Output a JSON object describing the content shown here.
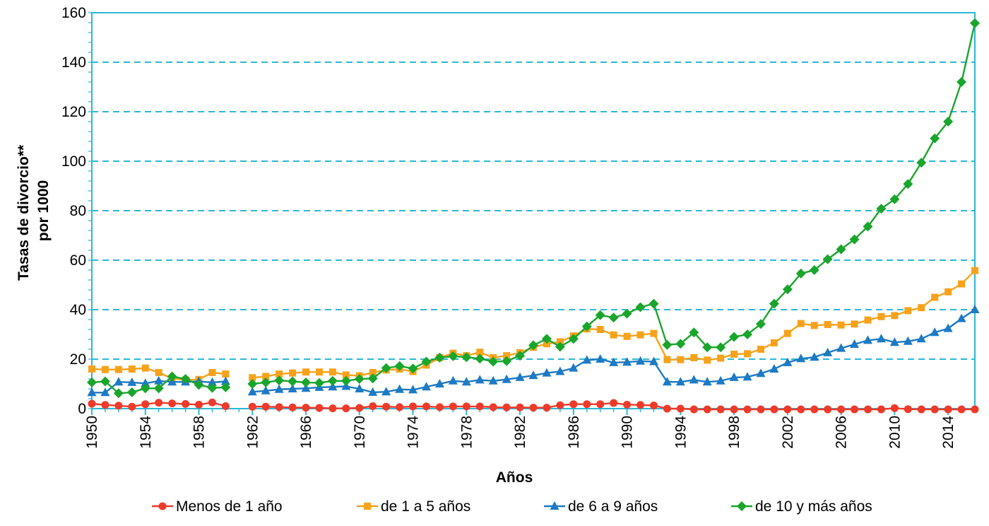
{
  "chart_data": {
    "type": "line",
    "title": "",
    "xlabel": "Años",
    "ylabel": "Tasas de divorcio** por 1000",
    "ylabel_lines": [
      "Tasas de divorcio**",
      "por 1000"
    ],
    "xlim": [
      1950,
      2016
    ],
    "ylim": [
      0,
      160
    ],
    "y_ticks": [
      0,
      20,
      40,
      60,
      80,
      100,
      120,
      140,
      160
    ],
    "x_ticks": [
      1950,
      1954,
      1958,
      1962,
      1966,
      1970,
      1974,
      1978,
      1982,
      1986,
      1990,
      1994,
      1998,
      2002,
      2006,
      2010,
      2014
    ],
    "grid": "horizontal dashed",
    "legend_position": "bottom",
    "series": [
      {
        "name": "Menos de 1 año",
        "color": "#ee3a2a",
        "marker": "circle",
        "points": [
          [
            1950,
            2
          ],
          [
            1951,
            1.5
          ],
          [
            1952,
            1.2
          ],
          [
            1953,
            0.8
          ],
          [
            1954,
            1.8
          ],
          [
            1955,
            2.4
          ],
          [
            1956,
            2.1
          ],
          [
            1957,
            1.9
          ],
          [
            1958,
            1.6
          ],
          [
            1959,
            2.5
          ],
          [
            1960,
            1
          ],
          [
            1962,
            0.8
          ],
          [
            1963,
            0.8
          ],
          [
            1964,
            0.6
          ],
          [
            1965,
            0.5
          ],
          [
            1966,
            0.4
          ],
          [
            1967,
            0.3
          ],
          [
            1968,
            0.1
          ],
          [
            1969,
            0.1
          ],
          [
            1970,
            0.3
          ],
          [
            1971,
            1
          ],
          [
            1972,
            0.8
          ],
          [
            1973,
            0.6
          ],
          [
            1974,
            0.9
          ],
          [
            1975,
            0.9
          ],
          [
            1976,
            0.6
          ],
          [
            1977,
            0.9
          ],
          [
            1978,
            0.9
          ],
          [
            1979,
            0.9
          ],
          [
            1980,
            0.6
          ],
          [
            1981,
            0.5
          ],
          [
            1982,
            0.5
          ],
          [
            1983,
            0.4
          ],
          [
            1984,
            0.4
          ],
          [
            1985,
            1.4
          ],
          [
            1986,
            1.8
          ],
          [
            1987,
            1.8
          ],
          [
            1988,
            1.8
          ],
          [
            1989,
            2.3
          ],
          [
            1990,
            1.6
          ],
          [
            1991,
            1.5
          ],
          [
            1992,
            1.3
          ],
          [
            1993,
            0
          ],
          [
            1994,
            0
          ],
          [
            1995,
            -0.3
          ],
          [
            1996,
            -0.3
          ],
          [
            1997,
            -0.3
          ],
          [
            1998,
            -0.3
          ],
          [
            1999,
            -0.3
          ],
          [
            2000,
            -0.3
          ],
          [
            2001,
            -0.3
          ],
          [
            2002,
            -0.3
          ],
          [
            2003,
            -0.3
          ],
          [
            2004,
            -0.3
          ],
          [
            2005,
            -0.3
          ],
          [
            2006,
            -0.3
          ],
          [
            2007,
            -0.3
          ],
          [
            2008,
            -0.3
          ],
          [
            2009,
            -0.3
          ],
          [
            2010,
            0.2
          ],
          [
            2011,
            -0.2
          ],
          [
            2012,
            -0.3
          ],
          [
            2013,
            -0.3
          ],
          [
            2014,
            -0.3
          ],
          [
            2015,
            -0.3
          ],
          [
            2016,
            -0.3
          ]
        ]
      },
      {
        "name": "de 1 a 5 años",
        "color": "#f7a21b",
        "marker": "square",
        "points": [
          [
            1950,
            16
          ],
          [
            1951,
            15.8
          ],
          [
            1952,
            15.8
          ],
          [
            1953,
            16
          ],
          [
            1954,
            16.4
          ],
          [
            1955,
            14.6
          ],
          [
            1956,
            12.2
          ],
          [
            1957,
            11.6
          ],
          [
            1958,
            11.8
          ],
          [
            1959,
            14.6
          ],
          [
            1960,
            14
          ],
          [
            1962,
            12.5
          ],
          [
            1963,
            13
          ],
          [
            1964,
            14
          ],
          [
            1965,
            14.4
          ],
          [
            1966,
            14.8
          ],
          [
            1967,
            14.8
          ],
          [
            1968,
            14.8
          ],
          [
            1969,
            13.6
          ],
          [
            1970,
            13.3
          ],
          [
            1971,
            14.6
          ],
          [
            1972,
            15.6
          ],
          [
            1973,
            16
          ],
          [
            1974,
            15
          ],
          [
            1975,
            17.6
          ],
          [
            1976,
            20.6
          ],
          [
            1977,
            22.4
          ],
          [
            1978,
            21.4
          ],
          [
            1979,
            22.8
          ],
          [
            1980,
            20.6
          ],
          [
            1981,
            21.4
          ],
          [
            1982,
            22.6
          ],
          [
            1983,
            24.8
          ],
          [
            1984,
            26.2
          ],
          [
            1985,
            27
          ],
          [
            1986,
            29.4
          ],
          [
            1987,
            32.2
          ],
          [
            1988,
            32
          ],
          [
            1989,
            29.8
          ],
          [
            1990,
            29.2
          ],
          [
            1991,
            29.8
          ],
          [
            1992,
            30.4
          ],
          [
            1993,
            19.8
          ],
          [
            1994,
            19.8
          ],
          [
            1995,
            20.6
          ],
          [
            1996,
            19.6
          ],
          [
            1997,
            20.4
          ],
          [
            1998,
            22
          ],
          [
            1999,
            22.2
          ],
          [
            2000,
            24
          ],
          [
            2001,
            26.6
          ],
          [
            2002,
            30.4
          ],
          [
            2003,
            34.4
          ],
          [
            2004,
            33.6
          ],
          [
            2005,
            34
          ],
          [
            2006,
            33.8
          ],
          [
            2007,
            34.2
          ],
          [
            2008,
            35.8
          ],
          [
            2009,
            37.2
          ],
          [
            2010,
            37.6
          ],
          [
            2011,
            39.6
          ],
          [
            2012,
            40.8
          ],
          [
            2013,
            45
          ],
          [
            2014,
            47.2
          ],
          [
            2015,
            50.4
          ],
          [
            2016,
            55.8
          ]
        ]
      },
      {
        "name": "de 6 a 9 años",
        "color": "#1d7ac4",
        "marker": "triangle",
        "points": [
          [
            1950,
            6.5
          ],
          [
            1951,
            6.5
          ],
          [
            1952,
            10.8
          ],
          [
            1953,
            10.6
          ],
          [
            1954,
            10.2
          ],
          [
            1955,
            11.2
          ],
          [
            1956,
            10.8
          ],
          [
            1957,
            10.8
          ],
          [
            1958,
            11
          ],
          [
            1959,
            10.6
          ],
          [
            1960,
            11
          ],
          [
            1962,
            6.8
          ],
          [
            1963,
            7.2
          ],
          [
            1964,
            7.8
          ],
          [
            1965,
            8
          ],
          [
            1966,
            8.2
          ],
          [
            1967,
            8.6
          ],
          [
            1968,
            8.8
          ],
          [
            1969,
            9
          ],
          [
            1970,
            8
          ],
          [
            1971,
            6.6
          ],
          [
            1972,
            6.8
          ],
          [
            1973,
            7.8
          ],
          [
            1974,
            7.6
          ],
          [
            1975,
            8.8
          ],
          [
            1976,
            10
          ],
          [
            1977,
            11.2
          ],
          [
            1978,
            10.8
          ],
          [
            1979,
            11.6
          ],
          [
            1980,
            11.2
          ],
          [
            1981,
            11.8
          ],
          [
            1982,
            12.6
          ],
          [
            1983,
            13.4
          ],
          [
            1984,
            14.4
          ],
          [
            1985,
            15
          ],
          [
            1986,
            16.4
          ],
          [
            1987,
            19.6
          ],
          [
            1988,
            20
          ],
          [
            1989,
            18.6
          ],
          [
            1990,
            18.8
          ],
          [
            1991,
            19.2
          ],
          [
            1992,
            19
          ],
          [
            1993,
            10.8
          ],
          [
            1994,
            10.8
          ],
          [
            1995,
            11.6
          ],
          [
            1996,
            10.8
          ],
          [
            1997,
            11.2
          ],
          [
            1998,
            12.6
          ],
          [
            1999,
            12.8
          ],
          [
            2000,
            14.2
          ],
          [
            2001,
            16
          ],
          [
            2002,
            18.6
          ],
          [
            2003,
            20.2
          ],
          [
            2004,
            20.8
          ],
          [
            2005,
            22.6
          ],
          [
            2006,
            24.4
          ],
          [
            2007,
            26
          ],
          [
            2008,
            27.6
          ],
          [
            2009,
            28.2
          ],
          [
            2010,
            26.8
          ],
          [
            2011,
            27.2
          ],
          [
            2012,
            28.2
          ],
          [
            2013,
            30.8
          ],
          [
            2014,
            32.4
          ],
          [
            2015,
            36.4
          ],
          [
            2016,
            40
          ]
        ]
      },
      {
        "name": "de 10 y más años",
        "color": "#1aa52c",
        "marker": "diamond",
        "points": [
          [
            1950,
            10.6
          ],
          [
            1951,
            11
          ],
          [
            1952,
            6.2
          ],
          [
            1953,
            6.6
          ],
          [
            1954,
            8.2
          ],
          [
            1955,
            8.2
          ],
          [
            1956,
            13
          ],
          [
            1957,
            12
          ],
          [
            1958,
            9.6
          ],
          [
            1959,
            8.4
          ],
          [
            1960,
            8.6
          ],
          [
            1962,
            10
          ],
          [
            1963,
            10.6
          ],
          [
            1964,
            11.4
          ],
          [
            1965,
            11
          ],
          [
            1966,
            10.6
          ],
          [
            1967,
            10.4
          ],
          [
            1968,
            11.2
          ],
          [
            1969,
            11.2
          ],
          [
            1970,
            12
          ],
          [
            1971,
            12.2
          ],
          [
            1972,
            16.4
          ],
          [
            1973,
            17.2
          ],
          [
            1974,
            16.2
          ],
          [
            1975,
            19
          ],
          [
            1976,
            20.6
          ],
          [
            1977,
            21.2
          ],
          [
            1978,
            20.8
          ],
          [
            1979,
            20.2
          ],
          [
            1980,
            19
          ],
          [
            1981,
            19.2
          ],
          [
            1982,
            21.4
          ],
          [
            1983,
            25.6
          ],
          [
            1984,
            28.2
          ],
          [
            1985,
            25
          ],
          [
            1986,
            28.2
          ],
          [
            1987,
            33.2
          ],
          [
            1988,
            37.8
          ],
          [
            1989,
            36.8
          ],
          [
            1990,
            38.4
          ],
          [
            1991,
            41
          ],
          [
            1992,
            42.4
          ],
          [
            1993,
            25.8
          ],
          [
            1994,
            26.2
          ],
          [
            1995,
            30.8
          ],
          [
            1996,
            24.8
          ],
          [
            1997,
            24.8
          ],
          [
            1998,
            29
          ],
          [
            1999,
            30
          ],
          [
            2000,
            34.2
          ],
          [
            2001,
            42.4
          ],
          [
            2002,
            48.2
          ],
          [
            2003,
            54.6
          ],
          [
            2004,
            56
          ],
          [
            2005,
            60.4
          ],
          [
            2006,
            64.4
          ],
          [
            2007,
            68.4
          ],
          [
            2008,
            73.6
          ],
          [
            2009,
            80.8
          ],
          [
            2010,
            84.6
          ],
          [
            2011,
            90.8
          ],
          [
            2012,
            99.4
          ],
          [
            2013,
            109.2
          ],
          [
            2014,
            116
          ],
          [
            2015,
            132
          ],
          [
            2016,
            155.8
          ]
        ]
      }
    ]
  }
}
